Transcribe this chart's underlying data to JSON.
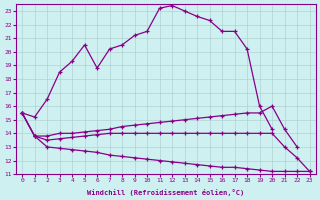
{
  "xlabel": "Windchill (Refroidissement éolien,°C)",
  "bg_color": "#cff0f0",
  "grid_color": "#aacccc",
  "line_color": "#880088",
  "xlim": [
    -0.5,
    23.5
  ],
  "ylim": [
    11,
    23.5
  ],
  "xticks": [
    0,
    1,
    2,
    3,
    4,
    5,
    6,
    7,
    8,
    9,
    10,
    11,
    12,
    13,
    14,
    15,
    16,
    17,
    18,
    19,
    20,
    21,
    22,
    23
  ],
  "yticks": [
    11,
    12,
    13,
    14,
    15,
    16,
    17,
    18,
    19,
    20,
    21,
    22,
    23
  ],
  "series": [
    [
      15.5,
      15.2,
      16.5,
      18.5,
      19.3,
      20.5,
      18.8,
      20.2,
      20.5,
      21.2,
      21.5,
      23.2,
      23.4,
      23.0,
      22.6,
      22.3,
      21.5,
      21.5,
      20.2,
      16.0,
      14.3,
      null,
      null,
      null
    ],
    [
      15.5,
      13.8,
      13.8,
      14.0,
      14.0,
      14.1,
      14.2,
      14.3,
      14.5,
      14.6,
      14.7,
      14.8,
      14.9,
      15.0,
      15.1,
      15.2,
      15.3,
      15.4,
      15.5,
      15.5,
      16.0,
      14.3,
      13.0,
      null
    ],
    [
      15.5,
      13.8,
      13.5,
      13.6,
      13.7,
      13.8,
      13.9,
      14.0,
      14.0,
      14.0,
      14.0,
      14.0,
      14.0,
      14.0,
      14.0,
      14.0,
      14.0,
      14.0,
      14.0,
      14.0,
      14.0,
      13.0,
      12.2,
      11.2
    ],
    [
      15.5,
      13.8,
      13.0,
      12.9,
      12.8,
      12.7,
      12.6,
      12.4,
      12.3,
      12.2,
      12.1,
      12.0,
      11.9,
      11.8,
      11.7,
      11.6,
      11.5,
      11.5,
      11.4,
      11.3,
      11.2,
      11.2,
      11.2,
      11.2
    ]
  ],
  "series_x": [
    [
      0,
      1,
      2,
      3,
      4,
      5,
      6,
      7,
      8,
      9,
      10,
      11,
      12,
      13,
      14,
      15,
      16,
      17,
      18,
      19,
      20
    ],
    [
      0,
      1,
      2,
      3,
      4,
      5,
      6,
      7,
      8,
      9,
      10,
      11,
      12,
      13,
      14,
      15,
      16,
      17,
      18,
      19,
      20,
      21,
      22
    ],
    [
      0,
      1,
      2,
      3,
      4,
      5,
      6,
      7,
      8,
      9,
      10,
      11,
      12,
      13,
      14,
      15,
      16,
      17,
      18,
      19,
      20,
      21,
      22,
      23
    ],
    [
      0,
      1,
      2,
      3,
      4,
      5,
      6,
      7,
      8,
      9,
      10,
      11,
      12,
      13,
      14,
      15,
      16,
      17,
      18,
      19,
      20,
      21,
      22,
      23
    ]
  ]
}
